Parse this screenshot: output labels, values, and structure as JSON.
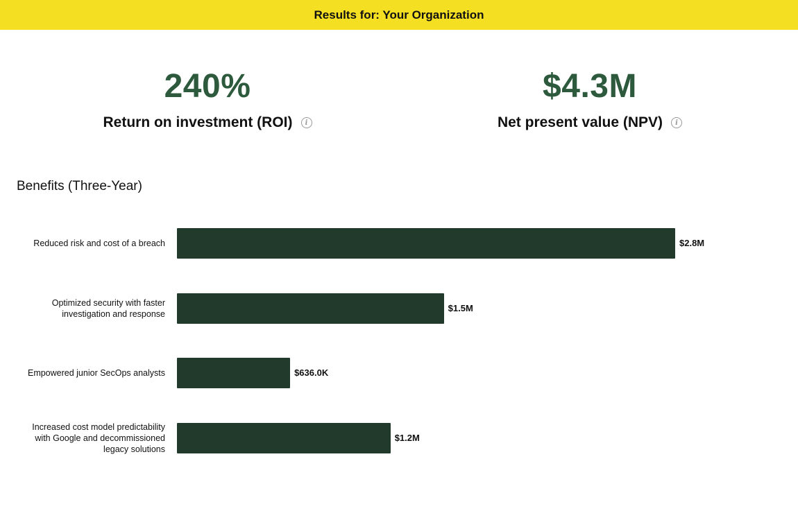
{
  "header": {
    "title": "Results for: Your Organization"
  },
  "kpis": [
    {
      "value": "240%",
      "label": "Return on investment (ROI)",
      "info_icon": "info-icon"
    },
    {
      "value": "$4.3M",
      "label": "Net present value (NPV)",
      "info_icon": "info-icon"
    }
  ],
  "info_glyph": "i",
  "chart_data": {
    "type": "bar",
    "orientation": "horizontal",
    "title": "Benefits (Three-Year)",
    "categories": [
      "Reduced risk and cost of a breach",
      "Optimized security with faster investigation and response",
      "Empowered junior SecOps analysts",
      "Increased cost model predictability with Google and decommissioned legacy solutions"
    ],
    "values": [
      2.8,
      1.5,
      0.636,
      1.2
    ],
    "value_labels": [
      "$2.8M",
      "$1.5M",
      "$636.0K",
      "$1.2M"
    ],
    "unit": "$M",
    "xlim": [
      0,
      2.8
    ],
    "bar_color": "#213a2c"
  }
}
